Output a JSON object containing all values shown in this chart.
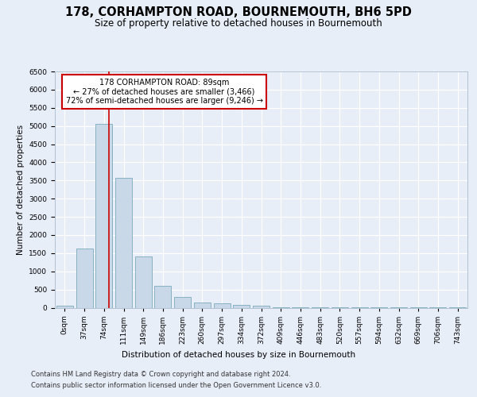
{
  "title": "178, CORHAMPTON ROAD, BOURNEMOUTH, BH6 5PD",
  "subtitle": "Size of property relative to detached houses in Bournemouth",
  "xlabel": "Distribution of detached houses by size in Bournemouth",
  "ylabel": "Number of detached properties",
  "bar_labels": [
    "0sqm",
    "37sqm",
    "74sqm",
    "111sqm",
    "149sqm",
    "186sqm",
    "223sqm",
    "260sqm",
    "297sqm",
    "334sqm",
    "372sqm",
    "409sqm",
    "446sqm",
    "483sqm",
    "520sqm",
    "557sqm",
    "594sqm",
    "632sqm",
    "669sqm",
    "706sqm",
    "743sqm"
  ],
  "bar_values": [
    60,
    1620,
    5060,
    3580,
    1400,
    600,
    290,
    150,
    120,
    80,
    50,
    20,
    10,
    5,
    3,
    2,
    1,
    1,
    1,
    1,
    1
  ],
  "bar_color": "#c8d8e8",
  "bar_edge_color": "#7aaabb",
  "red_line_x": 2.27,
  "annotation_text": "178 CORHAMPTON ROAD: 89sqm\n← 27% of detached houses are smaller (3,466)\n72% of semi-detached houses are larger (9,246) →",
  "annotation_box_color": "#ffffff",
  "annotation_box_edge": "#cc0000",
  "red_line_color": "#cc0000",
  "ylim": [
    0,
    6500
  ],
  "yticks": [
    0,
    500,
    1000,
    1500,
    2000,
    2500,
    3000,
    3500,
    4000,
    4500,
    5000,
    5500,
    6000,
    6500
  ],
  "footer1": "Contains HM Land Registry data © Crown copyright and database right 2024.",
  "footer2": "Contains public sector information licensed under the Open Government Licence v3.0.",
  "bg_color": "#e8eef8",
  "plot_bg_color": "#e8eef8",
  "grid_color": "#ffffff",
  "title_fontsize": 10.5,
  "subtitle_fontsize": 8.5,
  "axis_label_fontsize": 7.5,
  "tick_fontsize": 6.5,
  "footer_fontsize": 6.0,
  "annot_fontsize": 7.0
}
